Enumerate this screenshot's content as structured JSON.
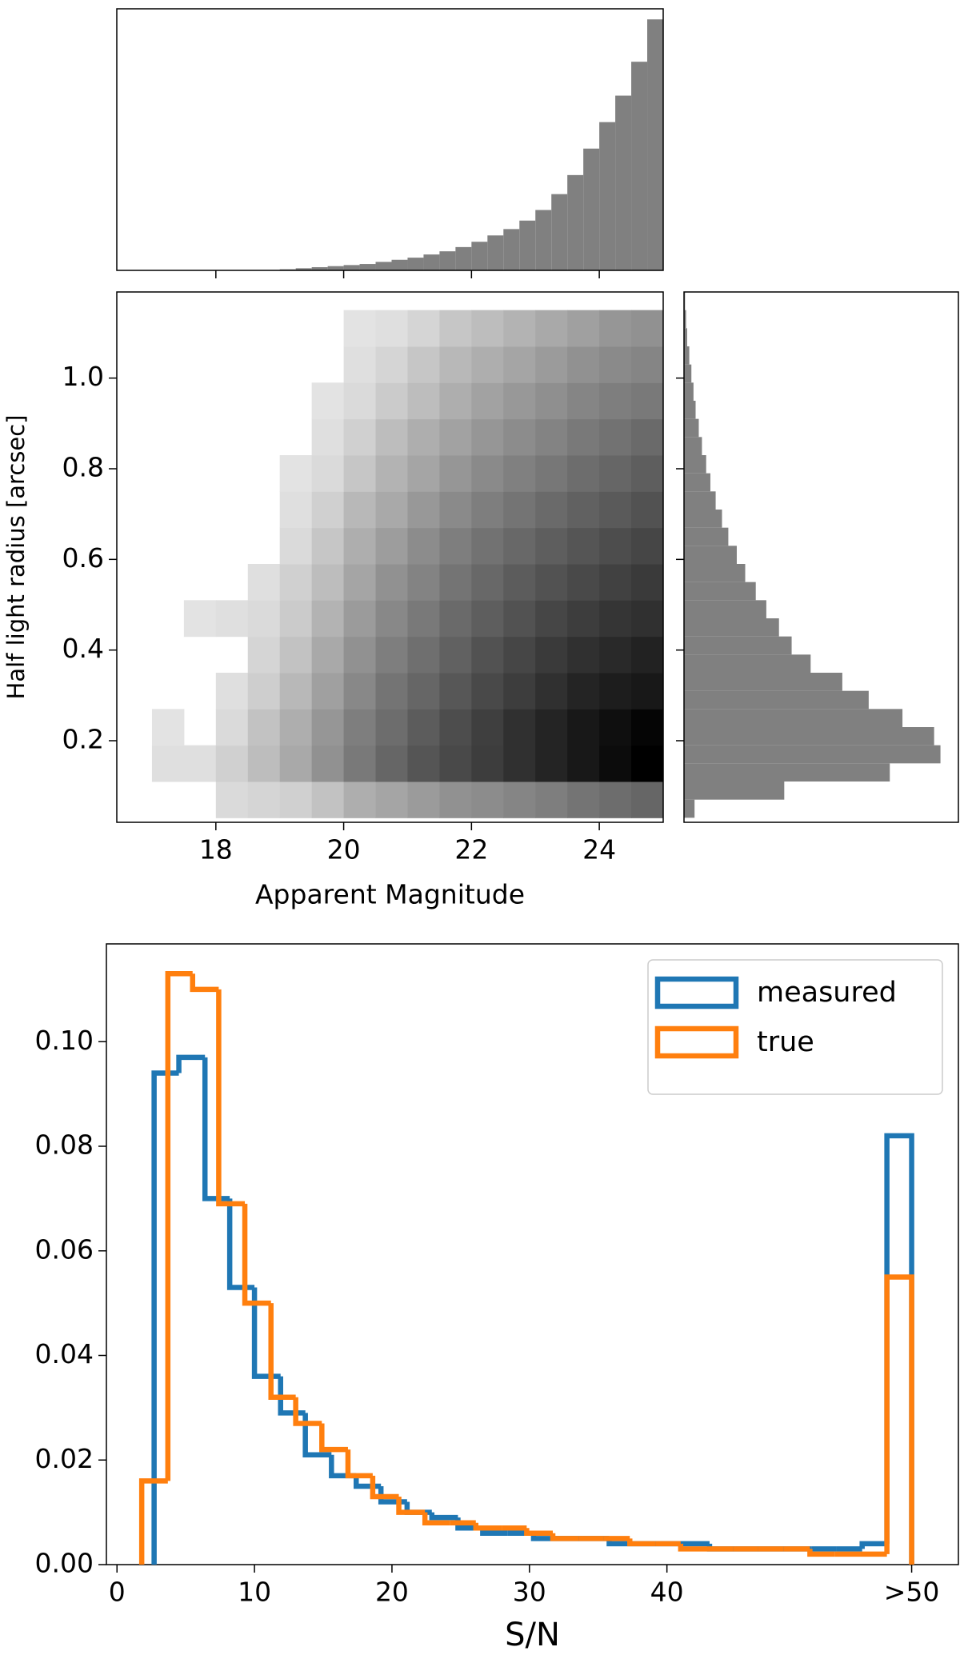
{
  "chart_data": [
    {
      "type": "histogram",
      "orientation": "vertical",
      "color": "#808080",
      "bins": [
        17.0,
        17.25,
        17.5,
        17.75,
        18.0,
        18.25,
        18.5,
        18.75,
        19.0,
        19.25,
        19.5,
        19.75,
        20.0,
        20.25,
        20.5,
        20.75,
        21.0,
        21.25,
        21.5,
        21.75,
        22.0,
        22.25,
        22.5,
        22.75,
        23.0,
        23.25,
        23.5,
        23.75,
        24.0,
        24.25,
        24.5,
        24.75,
        25.0
      ],
      "values": [
        0,
        0,
        0,
        0,
        0,
        0,
        0,
        0,
        1,
        2,
        3,
        4,
        5,
        6,
        8,
        10,
        12,
        15,
        18,
        22,
        27,
        33,
        39,
        47,
        57,
        72,
        90,
        115,
        140,
        165,
        197,
        237
      ],
      "xlim": [
        16.45,
        25.0
      ],
      "ylim": [
        0,
        247
      ],
      "xticks": [
        18,
        20,
        22,
        24
      ]
    },
    {
      "type": "heatmap",
      "cmap": "Greys",
      "xlabel": "Apparent Magnitude",
      "ylabel": "Half light radius [arcsec]",
      "xbins": [
        17.0,
        17.5,
        18.0,
        18.5,
        19.0,
        19.5,
        20.0,
        20.5,
        21.0,
        21.5,
        22.0,
        22.5,
        23.0,
        23.5,
        24.0,
        24.5,
        25.0
      ],
      "ybins": [
        0.03,
        0.11,
        0.19,
        0.27,
        0.35,
        0.43,
        0.51,
        0.59,
        0.67,
        0.75,
        0.83,
        0.91,
        0.99,
        1.07,
        1.15
      ],
      "values": [
        [
          null,
          null,
          10,
          12,
          14,
          20,
          28,
          32,
          36,
          40,
          42,
          45,
          48,
          52,
          55,
          58
        ],
        [
          8,
          8,
          14,
          22,
          30,
          40,
          50,
          58,
          65,
          70,
          75,
          80,
          85,
          90,
          95,
          100
        ],
        [
          6,
          null,
          10,
          20,
          28,
          38,
          48,
          55,
          62,
          68,
          74,
          80,
          85,
          90,
          94,
          98
        ],
        [
          null,
          null,
          8,
          15,
          24,
          34,
          44,
          52,
          58,
          64,
          70,
          75,
          80,
          85,
          88,
          90
        ],
        [
          null,
          null,
          null,
          12,
          20,
          30,
          40,
          48,
          54,
          60,
          66,
          71,
          76,
          80,
          83,
          86
        ],
        [
          null,
          6,
          8,
          10,
          16,
          26,
          36,
          44,
          50,
          56,
          61,
          66,
          71,
          75,
          78,
          80
        ],
        [
          null,
          null,
          null,
          8,
          14,
          22,
          32,
          40,
          46,
          52,
          57,
          62,
          66,
          70,
          73,
          76
        ],
        [
          null,
          null,
          null,
          null,
          10,
          18,
          28,
          35,
          42,
          48,
          53,
          57,
          61,
          65,
          68,
          71
        ],
        [
          null,
          null,
          null,
          null,
          8,
          14,
          24,
          30,
          37,
          43,
          48,
          52,
          56,
          60,
          63,
          66
        ],
        [
          null,
          null,
          null,
          null,
          6,
          10,
          18,
          26,
          32,
          38,
          43,
          47,
          51,
          55,
          58,
          61
        ],
        [
          null,
          null,
          null,
          null,
          null,
          8,
          14,
          22,
          28,
          33,
          38,
          42,
          46,
          50,
          53,
          56
        ],
        [
          null,
          null,
          null,
          null,
          null,
          6,
          10,
          16,
          22,
          28,
          33,
          37,
          41,
          45,
          48,
          50
        ],
        [
          null,
          null,
          null,
          null,
          null,
          null,
          8,
          12,
          18,
          24,
          28,
          32,
          36,
          40,
          43,
          45
        ],
        [
          null,
          null,
          null,
          null,
          null,
          null,
          6,
          8,
          12,
          18,
          22,
          26,
          30,
          34,
          38,
          40
        ]
      ],
      "xlim": [
        16.45,
        25.0
      ],
      "ylim": [
        0.02,
        1.19
      ],
      "xticks": [
        18,
        20,
        22,
        24
      ],
      "yticks": [
        0.2,
        0.4,
        0.6,
        0.8,
        {
          "value": 1,
          "label": "1.0"
        }
      ]
    },
    {
      "type": "histogram",
      "orientation": "horizontal",
      "color": "#808080",
      "bins": [
        0.03,
        0.07,
        0.11,
        0.15,
        0.19,
        0.23,
        0.27,
        0.31,
        0.35,
        0.39,
        0.43,
        0.47,
        0.51,
        0.55,
        0.59,
        0.63,
        0.67,
        0.71,
        0.75,
        0.79,
        0.83,
        0.87,
        0.91,
        0.95,
        0.99,
        1.03,
        1.07,
        1.11,
        1.15,
        1.19
      ],
      "values": [
        10,
        95,
        195,
        243,
        237,
        207,
        175,
        150,
        120,
        102,
        90,
        78,
        68,
        58,
        50,
        42,
        36,
        30,
        25,
        21,
        17,
        14,
        11,
        9,
        7,
        5,
        3,
        2,
        1
      ],
      "xlim": [
        0,
        260
      ],
      "ylim": [
        0.02,
        1.19
      ],
      "yticks": [
        0.2,
        0.4,
        0.6,
        0.8,
        1
      ]
    },
    {
      "type": "step",
      "xlabel": "S/N",
      "legend": "upper right",
      "series": [
        {
          "name": "measured",
          "color": "#1f77b4",
          "bins": [
            2.7,
            4.5,
            6.4,
            8.2,
            10.0,
            11.9,
            13.7,
            15.6,
            17.4,
            19.2,
            21.1,
            22.9,
            24.8,
            26.6,
            28.4,
            30.3,
            32.1,
            33.9,
            35.8,
            37.6,
            39.5,
            41.3,
            43.1,
            45.0,
            46.8,
            48.7,
            50.5,
            52.3,
            54.2,
            56.0,
            57.8
          ],
          "values": [
            0.094,
            0.097,
            0.07,
            0.053,
            0.036,
            0.029,
            0.021,
            0.017,
            0.015,
            0.012,
            0.01,
            0.009,
            0.007,
            0.006,
            0.006,
            0.005,
            0.005,
            0.005,
            0.004,
            0.004,
            0.004,
            0.004,
            0.003,
            0.003,
            0.003,
            0.003,
            0.003,
            0.003,
            0.004,
            0.082
          ]
        },
        {
          "name": "true",
          "color": "#ff7f0e",
          "bins": [
            1.8,
            3.7,
            5.5,
            7.4,
            9.3,
            11.2,
            13.0,
            14.9,
            16.8,
            18.6,
            20.5,
            22.4,
            24.2,
            26.1,
            28.0,
            29.8,
            31.7,
            33.6,
            35.4,
            37.3,
            39.2,
            41.0,
            42.9,
            44.8,
            46.6,
            48.5,
            50.4,
            52.2,
            54.1,
            56.0,
            57.8
          ],
          "values": [
            0.016,
            0.113,
            0.11,
            0.069,
            0.05,
            0.032,
            0.027,
            0.022,
            0.017,
            0.013,
            0.01,
            0.008,
            0.008,
            0.007,
            0.007,
            0.006,
            0.005,
            0.005,
            0.005,
            0.004,
            0.004,
            0.003,
            0.003,
            0.003,
            0.003,
            0.003,
            0.002,
            0.002,
            0.002,
            0.055
          ]
        }
      ],
      "xlim": [
        -0.77,
        61.2
      ],
      "ylim": [
        0,
        0.1187
      ],
      "xticks": [
        0,
        10,
        20,
        30,
        40,
        {
          "value": 57.8,
          "label": ">50"
        }
      ],
      "yticks": [
        {
          "value": 0,
          "label": "0.00"
        },
        {
          "value": 0.02,
          "label": "0.02"
        },
        {
          "value": 0.04,
          "label": "0.04"
        },
        {
          "value": 0.06,
          "label": "0.06"
        },
        {
          "value": 0.08,
          "label": "0.08"
        },
        {
          "value": 0.1,
          "label": "0.10"
        }
      ]
    }
  ]
}
